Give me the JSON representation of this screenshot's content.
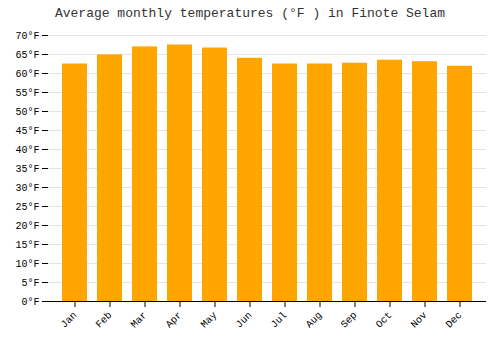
{
  "chart_data": {
    "type": "bar",
    "title": "Average monthly temperatures (°F ) in Finote Selam",
    "categories": [
      "Jan",
      "Feb",
      "Mar",
      "Apr",
      "May",
      "Jun",
      "Jul",
      "Aug",
      "Sep",
      "Oct",
      "Nov",
      "Dec"
    ],
    "values": [
      62.5,
      64.9,
      67.0,
      67.5,
      66.7,
      64.0,
      62.5,
      62.5,
      62.7,
      63.5,
      63.1,
      61.9
    ],
    "color": "#FFA500",
    "ylim": [
      0,
      70
    ],
    "yticks": [
      {
        "value": 0,
        "label": "0°F"
      },
      {
        "value": 5,
        "label": "5°F"
      },
      {
        "value": 10,
        "label": "10°F"
      },
      {
        "value": 15,
        "label": "15°F"
      },
      {
        "value": 20,
        "label": "20°F"
      },
      {
        "value": 25,
        "label": "25°F"
      },
      {
        "value": 30,
        "label": "30°F"
      },
      {
        "value": 35,
        "label": "35°F"
      },
      {
        "value": 40,
        "label": "40°F"
      },
      {
        "value": 45,
        "label": "45°F"
      },
      {
        "value": 50,
        "label": "50°F"
      },
      {
        "value": 55,
        "label": "55°F"
      },
      {
        "value": 60,
        "label": "60°F"
      },
      {
        "value": 65,
        "label": "65°F"
      },
      {
        "value": 70,
        "label": "70°F"
      }
    ],
    "grid": true
  }
}
